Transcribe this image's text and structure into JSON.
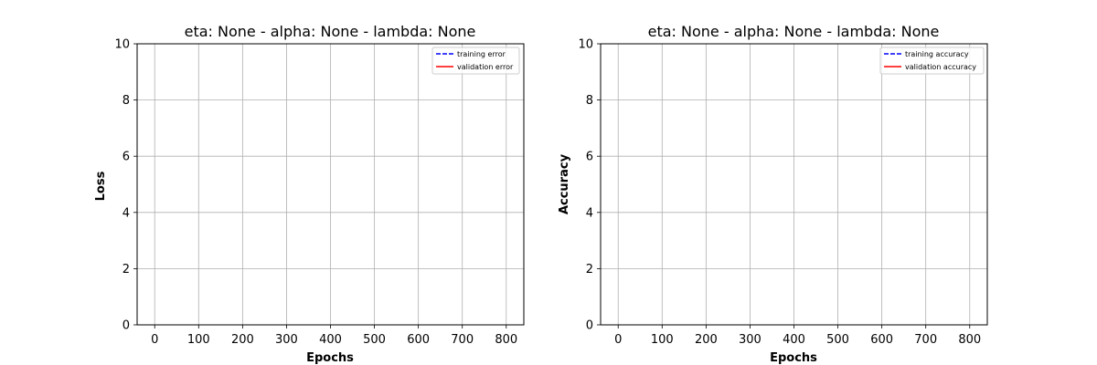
{
  "chart_data": [
    {
      "type": "line",
      "title": "eta: None - alpha: None - lambda: None",
      "xlabel": "Epochs",
      "ylabel": "Loss",
      "xlim": [
        -40,
        840
      ],
      "ylim": [
        0,
        10
      ],
      "xticks": [
        "0",
        "100",
        "200",
        "300",
        "400",
        "500",
        "600",
        "700",
        "800"
      ],
      "yticks": [
        "0",
        "2",
        "4",
        "6",
        "8",
        "10"
      ],
      "grid": true,
      "legend_position": "upper-right",
      "series": [
        {
          "name": "training error",
          "color": "#0000ff",
          "style": "dashed",
          "x": [],
          "y": []
        },
        {
          "name": "validation error",
          "color": "#ff0000",
          "style": "solid",
          "x": [],
          "y": []
        }
      ]
    },
    {
      "type": "line",
      "title": "eta: None - alpha: None - lambda: None",
      "xlabel": "Epochs",
      "ylabel": "Accuracy",
      "xlim": [
        -40,
        840
      ],
      "ylim": [
        0,
        10
      ],
      "xticks": [
        "0",
        "100",
        "200",
        "300",
        "400",
        "500",
        "600",
        "700",
        "800"
      ],
      "yticks": [
        "0",
        "2",
        "4",
        "6",
        "8",
        "10"
      ],
      "grid": true,
      "legend_position": "upper-right",
      "series": [
        {
          "name": "training accuracy",
          "color": "#0000ff",
          "style": "dashed",
          "x": [],
          "y": []
        },
        {
          "name": "validation accuracy",
          "color": "#ff0000",
          "style": "solid",
          "x": [],
          "y": []
        }
      ]
    }
  ]
}
